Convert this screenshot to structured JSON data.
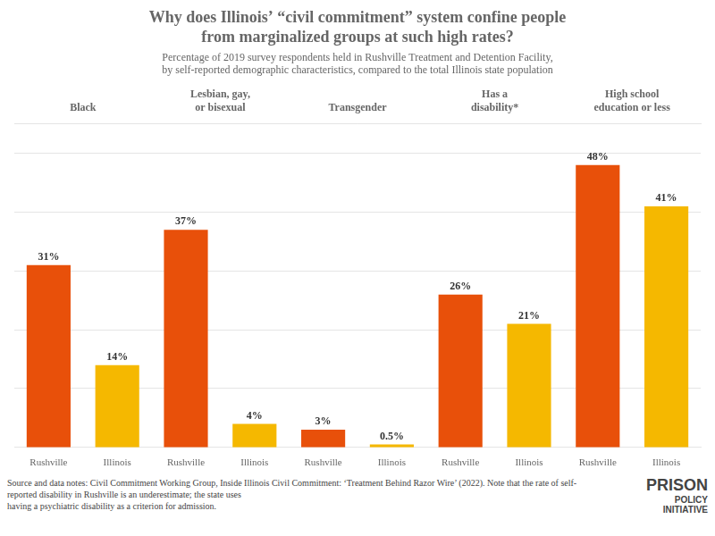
{
  "chart_data": {
    "type": "bar",
    "title": [
      "Why does Illinois’ “civil commitment” system confine people",
      "from marginalized groups at such high rates?"
    ],
    "subtitle": [
      "Percentage of 2019 survey respondents held in Rushville Treatment and Detention Facility,",
      "by self-reported demographic characteristics, compared to the total Illinois state population"
    ],
    "categories": [
      "Black",
      "Lesbian, gay,\nor bisexual",
      "Transgender",
      "Has a\ndisability*",
      "High school\neducation or less"
    ],
    "series": [
      {
        "name": "Rushville",
        "color": "#E8500A",
        "values": [
          31,
          37,
          3,
          26,
          48
        ],
        "value_labels": [
          "31%",
          "37%",
          "3%",
          "26%",
          "48%"
        ]
      },
      {
        "name": "Illinois",
        "color": "#F5B800",
        "values": [
          14,
          4,
          0.5,
          21,
          41
        ],
        "value_labels": [
          "14%",
          "4%",
          "0.5%",
          "21%",
          "41%"
        ]
      }
    ],
    "ylim": [
      0,
      55
    ],
    "yticks": [
      10,
      20,
      30,
      40,
      50
    ],
    "grid": true,
    "data_labels": true,
    "tick_labels": "x",
    "annotations": [
      "Source and data notes: Civil Commitment Working Group, Inside Illinois Civil Commitment: ‘Treatment Behind Razor Wire’ (2022). Note that the rate of self-reported disability in Rushville is an underestimate; the state uses",
      "having a psychiatric disability as a criterion for admission.",
      "PRISON",
      "POLICY",
      "INITIATIVE"
    ]
  }
}
